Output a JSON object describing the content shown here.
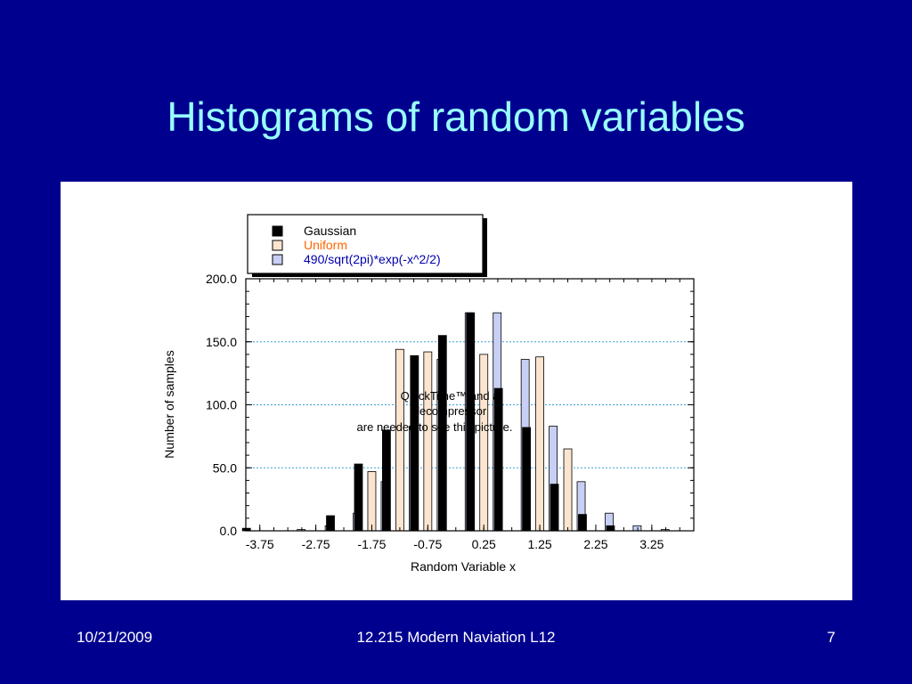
{
  "slide": {
    "title": "Histograms of random variables",
    "footer_date": "10/21/2009",
    "footer_course": "12.215 Modern Naviation L12",
    "page_number": "7"
  },
  "placeholder": {
    "line1": "QuickTime™ and a",
    "line2": "decompressor",
    "line3": "are needed to see this picture."
  },
  "chart_data": {
    "type": "bar",
    "xlabel": "Random Variable x",
    "ylabel": "Number of samples",
    "ylim": [
      0,
      200
    ],
    "yticks": [
      "0.0",
      "50.0",
      "100.0",
      "150.0",
      "200.0"
    ],
    "xticks": [
      "-3.75",
      "-2.75",
      "-1.75",
      "-0.75",
      "0.25",
      "1.25",
      "2.25",
      "3.25"
    ],
    "categories": [
      -3.75,
      -3.25,
      -2.75,
      -2.25,
      -1.75,
      -1.25,
      -0.75,
      -0.25,
      0.25,
      0.75,
      1.25,
      1.75,
      2.25,
      2.75,
      3.25,
      3.75
    ],
    "legend_position": "top-center",
    "grid": "horizontal-dotted",
    "series": [
      {
        "name": "Gaussian",
        "color": "#000000",
        "values": [
          2,
          0,
          0,
          12,
          53,
          80,
          139,
          155,
          173,
          113,
          82,
          37,
          13,
          4,
          0,
          0
        ]
      },
      {
        "name": "Uniform",
        "color": "#fbe5d0",
        "values": [
          0,
          0,
          0,
          0,
          47,
          144,
          142,
          0,
          140,
          0,
          138,
          65,
          0,
          0,
          0,
          0
        ]
      },
      {
        "name": "490/sqrt(2pi)*exp(-x^2/2)",
        "color": "#c8cff5",
        "values": [
          0,
          1,
          4,
          14,
          39,
          83,
          136,
          173,
          173,
          136,
          83,
          39,
          14,
          4,
          1,
          0
        ]
      }
    ],
    "legend_colors": {
      "Gaussian": "#000000",
      "Uniform": "#ff6600",
      "490/sqrt(2pi)*exp(-x^2/2)": "#0000aa"
    }
  }
}
